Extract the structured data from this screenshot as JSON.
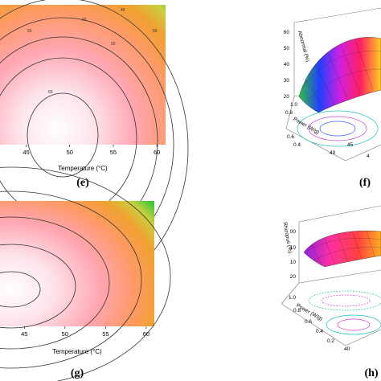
{
  "chart_data": [
    {
      "type": "heatmap",
      "panel": "(e)",
      "xlabel": "Temperature (°C)",
      "xlim": [
        42,
        61
      ],
      "x_ticks": [
        "45",
        "50",
        "55",
        "60"
      ],
      "grid": false,
      "contour_labels": [
        "55",
        "60",
        "45",
        "50",
        "65",
        "55"
      ],
      "colors": {
        "high": "#ffffff",
        "mid": "#ff8aa0",
        "edge": "#ff9a55",
        "low": "#40c838"
      }
    },
    {
      "type": "area",
      "panel": "(f)",
      "xlabel": "",
      "ylabel": "",
      "labels": {
        "z": "Abnormal (%)",
        "y": "Power (W/g)",
        "x_tick_partial": "45",
        "x_tick_partial_2": "4"
      },
      "z_ticks": [
        "60",
        "50",
        "40",
        "30",
        "20"
      ],
      "y_ticks": [
        "1.0",
        "0.8",
        "0.6",
        "0.4"
      ],
      "x_ticks": [
        "40",
        "45"
      ]
    },
    {
      "type": "heatmap",
      "panel": "(g)",
      "xlabel": "Temperature (°C)",
      "xlim": [
        42,
        61
      ],
      "x_ticks": [
        "45",
        "50",
        "55",
        "60"
      ],
      "grid": false,
      "colors": {
        "high": "#ffffff",
        "mid": "#ff8aa0",
        "edge": "#ff9a55",
        "low": "#40c838"
      }
    },
    {
      "type": "area",
      "panel": "(h)",
      "xlabel": "",
      "ylabel": "",
      "labels": {
        "z": "Rhizopus (%)",
        "y": "Power (W/g)"
      },
      "z_ticks": [
        "00",
        "10",
        "10",
        "20"
      ],
      "y_ticks": [
        "1.0",
        "0.8",
        "0.6",
        "0.4",
        "0.2"
      ],
      "x_ticks": [
        "40"
      ]
    }
  ]
}
